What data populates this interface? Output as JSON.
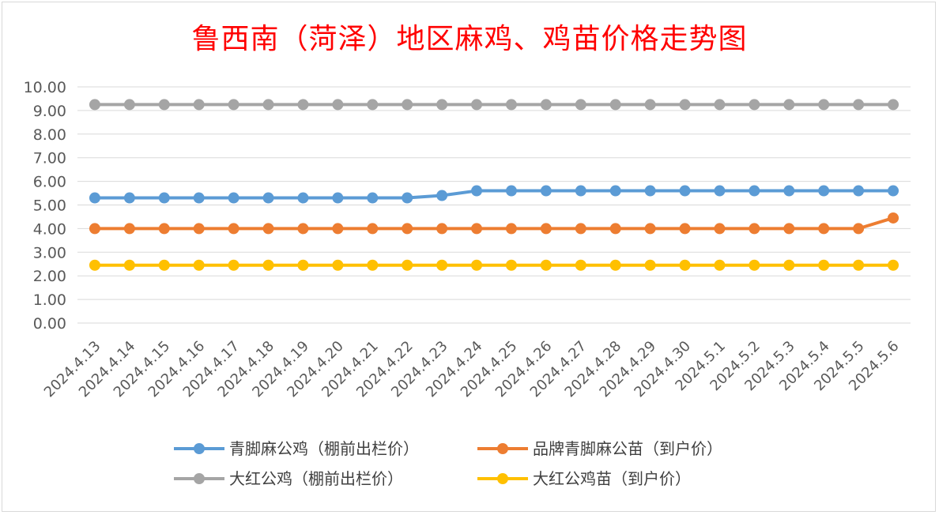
{
  "chart_data": {
    "type": "line",
    "title": "鲁西南（菏泽）地区麻鸡、鸡苗价格走势图",
    "xlabel": "",
    "ylabel": "",
    "ylim": [
      0,
      10
    ],
    "y_ticks": [
      "0.00",
      "1.00",
      "2.00",
      "3.00",
      "4.00",
      "5.00",
      "6.00",
      "7.00",
      "8.00",
      "9.00",
      "10.00"
    ],
    "grid": "horizontal",
    "legend_position": "bottom",
    "categories": [
      "2024.4.13",
      "2024.4.14",
      "2024.4.15",
      "2024.4.16",
      "2024.4.17",
      "2024.4.18",
      "2024.4.19",
      "2024.4.20",
      "2024.4.21",
      "2024.4.22",
      "2024.4.23",
      "2024.4.24",
      "2024.4.25",
      "2024.4.26",
      "2024.4.27",
      "2024.4.28",
      "2024.4.29",
      "2024.4.30",
      "2024.5.1",
      "2024.5.2",
      "2024.5.3",
      "2024.5.4",
      "2024.5.5",
      "2024.5.6"
    ],
    "series": [
      {
        "name": "青脚麻公鸡（棚前出栏价）",
        "color": "#5b9bd5",
        "values": [
          5.3,
          5.3,
          5.3,
          5.3,
          5.3,
          5.3,
          5.3,
          5.3,
          5.3,
          5.3,
          5.4,
          5.6,
          5.6,
          5.6,
          5.6,
          5.6,
          5.6,
          5.6,
          5.6,
          5.6,
          5.6,
          5.6,
          5.6,
          5.6
        ]
      },
      {
        "name": "品牌青脚麻公苗（到户价）",
        "color": "#ed7d31",
        "values": [
          4.0,
          4.0,
          4.0,
          4.0,
          4.0,
          4.0,
          4.0,
          4.0,
          4.0,
          4.0,
          4.0,
          4.0,
          4.0,
          4.0,
          4.0,
          4.0,
          4.0,
          4.0,
          4.0,
          4.0,
          4.0,
          4.0,
          4.0,
          4.45
        ]
      },
      {
        "name": "大红公鸡（棚前出栏价）",
        "color": "#a5a5a5",
        "values": [
          9.25,
          9.25,
          9.25,
          9.25,
          9.25,
          9.25,
          9.25,
          9.25,
          9.25,
          9.25,
          9.25,
          9.25,
          9.25,
          9.25,
          9.25,
          9.25,
          9.25,
          9.25,
          9.25,
          9.25,
          9.25,
          9.25,
          9.25,
          9.25
        ]
      },
      {
        "name": "大红公鸡苗（到户价）",
        "color": "#ffc000",
        "values": [
          2.45,
          2.45,
          2.45,
          2.45,
          2.45,
          2.45,
          2.45,
          2.45,
          2.45,
          2.45,
          2.45,
          2.45,
          2.45,
          2.45,
          2.45,
          2.45,
          2.45,
          2.45,
          2.45,
          2.45,
          2.45,
          2.45,
          2.45,
          2.45
        ]
      }
    ]
  }
}
